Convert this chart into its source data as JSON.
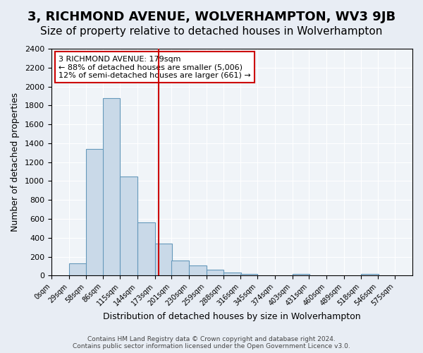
{
  "title": "3, RICHMOND AVENUE, WOLVERHAMPTON, WV3 9JB",
  "subtitle": "Size of property relative to detached houses in Wolverhampton",
  "xlabel": "Distribution of detached houses by size in Wolverhampton",
  "ylabel": "Number of detached properties",
  "footer_lines": [
    "Contains HM Land Registry data © Crown copyright and database right 2024.",
    "Contains public sector information licensed under the Open Government Licence v3.0."
  ],
  "annotation_title": "3 RICHMOND AVENUE: 179sqm",
  "annotation_line2": "← 88% of detached houses are smaller (5,006)",
  "annotation_line3": "12% of semi-detached houses are larger (661) →",
  "bar_left_edges": [
    0,
    29,
    58,
    86,
    115,
    144,
    173,
    201,
    230,
    259,
    288,
    316,
    345,
    374,
    403,
    431,
    460,
    489,
    518,
    546
  ],
  "bar_heights": [
    0,
    130,
    1340,
    1880,
    1050,
    560,
    340,
    160,
    110,
    60,
    30,
    20,
    0,
    0,
    20,
    0,
    0,
    0,
    20,
    0
  ],
  "bin_width": 29,
  "bar_color": "#c9d9e8",
  "bar_edge_color": "#6699bb",
  "tick_positions": [
    0,
    29,
    58,
    86,
    115,
    144,
    173,
    201,
    230,
    259,
    288,
    316,
    345,
    374,
    403,
    431,
    460,
    489,
    518,
    546,
    575
  ],
  "tick_labels": [
    "0sqm",
    "29sqm",
    "58sqm",
    "86sqm",
    "115sqm",
    "144sqm",
    "173sqm",
    "201sqm",
    "230sqm",
    "259sqm",
    "288sqm",
    "316sqm",
    "345sqm",
    "374sqm",
    "403sqm",
    "431sqm",
    "460sqm",
    "489sqm",
    "518sqm",
    "546sqm",
    "575sqm"
  ],
  "vline_x": 179,
  "vline_color": "#cc0000",
  "ylim": [
    0,
    2400
  ],
  "xlim": [
    0,
    604
  ],
  "yticks": [
    0,
    200,
    400,
    600,
    800,
    1000,
    1200,
    1400,
    1600,
    1800,
    2000,
    2200,
    2400
  ],
  "bg_color": "#e8edf4",
  "plot_bg_color": "#f0f4f8",
  "title_fontsize": 13,
  "subtitle_fontsize": 11,
  "annotation_box_color": "#ffffff",
  "annotation_box_edge": "#cc0000"
}
